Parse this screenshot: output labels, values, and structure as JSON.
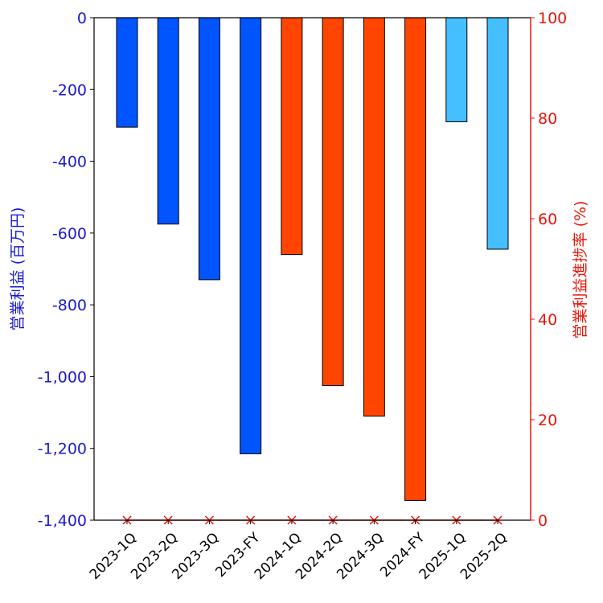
{
  "chart_data": {
    "type": "bar",
    "title": "",
    "xlabel": "",
    "categories": [
      "2023-1Q",
      "2023-2Q",
      "2023-3Q",
      "2023-FY",
      "2024-1Q",
      "2024-2Q",
      "2024-3Q",
      "2024-FY",
      "2025-1Q",
      "2025-2Q"
    ],
    "series": [
      {
        "name": "営業利益",
        "axis": "left",
        "values": [
          -305,
          -575,
          -730,
          -1215,
          -660,
          -1025,
          -1110,
          -1345,
          -290,
          -645
        ],
        "colors": [
          "#0055ff",
          "#0055ff",
          "#0055ff",
          "#0055ff",
          "#ff4500",
          "#ff4500",
          "#ff4500",
          "#ff4500",
          "#45bfff",
          "#45bfff"
        ]
      },
      {
        "name": "営業利益進捗率",
        "axis": "right",
        "type": "scatter",
        "marker": "x",
        "color": "#e8150a",
        "values": [
          0,
          0,
          0,
          0,
          0,
          0,
          0,
          0,
          0,
          0
        ]
      }
    ],
    "ylabel_left": "営業利益 (百万円)",
    "ylabel_right": "営業利益進捗率 (%)",
    "ylim_left": [
      -1400,
      0
    ],
    "ylim_right": [
      0,
      100
    ],
    "yticks_left": [
      0,
      -200,
      -400,
      -600,
      -800,
      -1000,
      -1200,
      -1400
    ],
    "yticks_left_labels": [
      "0",
      "-200",
      "-400",
      "-600",
      "-800",
      "-1,000",
      "-1,200",
      "-1,400"
    ],
    "yticks_right": [
      0,
      20,
      40,
      60,
      80,
      100
    ],
    "yticks_right_labels": [
      "0",
      "20",
      "40",
      "60",
      "80",
      "100"
    ],
    "left_axis_color": "#1a1acc",
    "right_axis_color": "#e8150a",
    "grid": false
  }
}
